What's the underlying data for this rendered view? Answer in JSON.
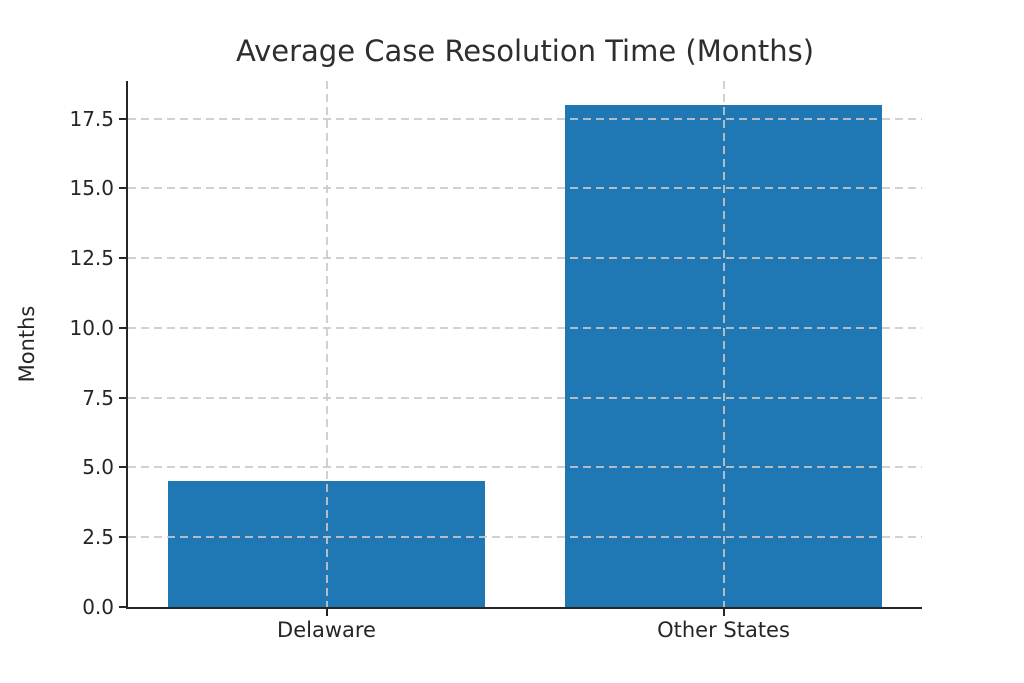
{
  "figure": {
    "background": "#ffffff"
  },
  "chart_data": {
    "type": "bar",
    "title": "Average Case Resolution Time (Months)",
    "categories": [
      "Delaware",
      "Other States"
    ],
    "values": [
      4.5,
      18
    ],
    "xlabel": "",
    "ylabel": "Months",
    "ylim": [
      0,
      18.85
    ],
    "ytick_labels": [
      "0.0",
      "2.5",
      "5.0",
      "7.5",
      "10.0",
      "12.5",
      "15.0",
      "17.5"
    ],
    "bar_color": "#1f77b4",
    "axis_color": "#262626",
    "grid": {
      "horizontal": true,
      "vertical": true,
      "style": "dashed",
      "color": "#c9c9c9"
    },
    "legend": null,
    "bar_width_fraction": 0.8
  }
}
